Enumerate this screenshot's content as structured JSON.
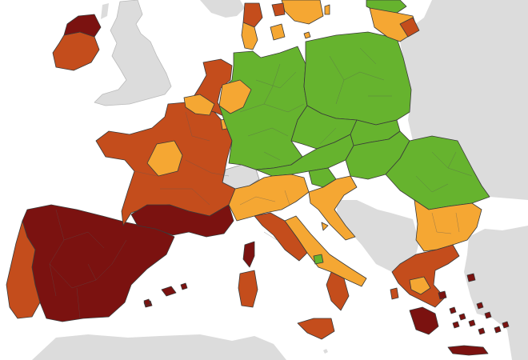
{
  "map": {
    "type": "choropleth",
    "region": "Europe",
    "legend_shown": false,
    "colors": {
      "sea": "#ffffff",
      "no_data": "#dcdcdc",
      "green": "#66b32e",
      "orange": "#f5a733",
      "red": "#c44d1c",
      "dark_red": "#7b1210",
      "borders": "#3a3a3a"
    },
    "regions": [
      {
        "id": "portugal",
        "level": "red"
      },
      {
        "id": "spain",
        "level": "dark_red"
      },
      {
        "id": "france",
        "level": "red"
      },
      {
        "id": "france-centre",
        "level": "orange"
      },
      {
        "id": "france-occitanie",
        "level": "dark_red"
      },
      {
        "id": "ireland",
        "level": "red"
      },
      {
        "id": "northern-ireland",
        "level": "dark_red"
      },
      {
        "id": "benelux",
        "level": "red"
      },
      {
        "id": "belgium-north",
        "level": "orange"
      },
      {
        "id": "germany",
        "level": "green"
      },
      {
        "id": "poland",
        "level": "green"
      },
      {
        "id": "czechia",
        "level": "green"
      },
      {
        "id": "austria",
        "level": "green"
      },
      {
        "id": "slovakia",
        "level": "green"
      },
      {
        "id": "hungary",
        "level": "green"
      },
      {
        "id": "romania",
        "level": "green"
      },
      {
        "id": "slovenia",
        "level": "green"
      },
      {
        "id": "croatia",
        "level": "orange"
      },
      {
        "id": "italy-north",
        "level": "orange"
      },
      {
        "id": "italy-centre",
        "level": "red"
      },
      {
        "id": "italy-south",
        "level": "orange"
      },
      {
        "id": "sicily",
        "level": "red"
      },
      {
        "id": "sardinia",
        "level": "red"
      },
      {
        "id": "corsica",
        "level": "dark_red"
      },
      {
        "id": "bulgaria",
        "level": "orange"
      },
      {
        "id": "greece-north",
        "level": "red"
      },
      {
        "id": "greece-centre",
        "level": "orange"
      },
      {
        "id": "attica",
        "level": "dark_red"
      },
      {
        "id": "crete",
        "level": "dark_red"
      },
      {
        "id": "denmark",
        "level": "orange"
      },
      {
        "id": "jutland-north",
        "level": "red"
      },
      {
        "id": "baltics",
        "level": "orange"
      },
      {
        "id": "latvia",
        "level": "green"
      },
      {
        "id": "switzerland",
        "level": "no_data"
      },
      {
        "id": "great-britain",
        "level": "no_data"
      }
    ]
  }
}
